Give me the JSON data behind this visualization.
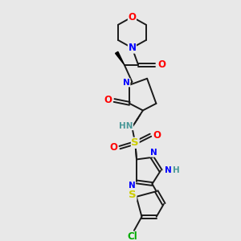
{
  "background_color": "#e8e8e8",
  "bond_color": "#1a1a1a",
  "atom_colors": {
    "O": "#ff0000",
    "N": "#0000ff",
    "S": "#cccc00",
    "Cl": "#00aa00",
    "H": "#4a9999",
    "C": "#1a1a1a"
  },
  "font_size": 7.5,
  "fig_width": 3.0,
  "fig_height": 3.0,
  "dpi": 100
}
